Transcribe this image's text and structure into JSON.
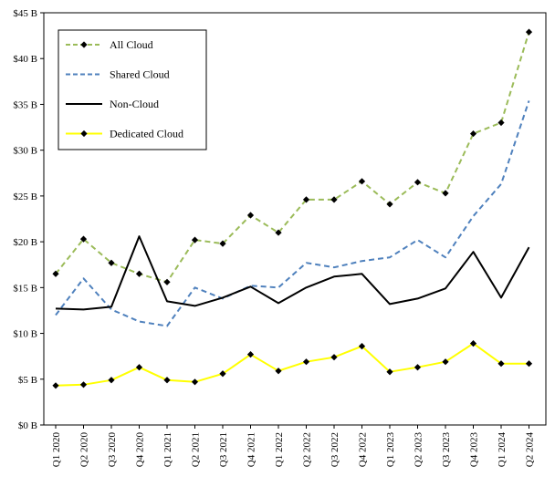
{
  "chart_data": {
    "type": "line",
    "categories": [
      "Q1 2020",
      "Q2 2020",
      "Q3 2020",
      "Q4 2020",
      "Q1 2021",
      "Q2 2021",
      "Q3 2021",
      "Q4 2021",
      "Q1 2022",
      "Q2 2022",
      "Q3 2022",
      "Q4 2022",
      "Q1 2023",
      "Q2 2023",
      "Q3 2023",
      "Q4 2023",
      "Q1 2024",
      "Q2 2024"
    ],
    "yticks": [
      "$0 B",
      "$5 B",
      "$10 B",
      "$15 B",
      "$20 B",
      "$25 B",
      "$30 B",
      "$35 B",
      "$40 B",
      "$45 B"
    ],
    "ylim": [
      0,
      45
    ],
    "grid": false,
    "legend_position": "top-left",
    "series": [
      {
        "name": "All Cloud",
        "color": "#9BBB59",
        "style": "dashed",
        "markers": "diamond",
        "values": [
          16.5,
          20.3,
          17.7,
          16.5,
          15.6,
          20.2,
          19.8,
          22.9,
          21.0,
          24.6,
          24.6,
          26.6,
          24.1,
          26.5,
          25.3,
          31.8,
          33.0,
          42.9
        ]
      },
      {
        "name": "Shared Cloud",
        "color": "#4F81BD",
        "style": "dashed",
        "markers": "none",
        "values": [
          12.0,
          16.0,
          12.6,
          11.3,
          10.8,
          15.0,
          13.8,
          15.2,
          15.0,
          17.7,
          17.2,
          17.9,
          18.3,
          20.2,
          18.3,
          22.8,
          26.3,
          35.4
        ]
      },
      {
        "name": "Non-Cloud",
        "color": "#000000",
        "style": "solid",
        "markers": "none",
        "values": [
          12.7,
          12.6,
          12.9,
          20.6,
          13.5,
          13.0,
          13.9,
          15.1,
          13.3,
          15.0,
          16.2,
          16.5,
          13.2,
          13.8,
          14.9,
          18.9,
          13.9,
          19.4
        ]
      },
      {
        "name": "Dedicated Cloud",
        "color": "#FFFF00",
        "style": "solid",
        "markers": "diamond",
        "values": [
          4.3,
          4.4,
          4.9,
          6.3,
          4.9,
          4.7,
          5.6,
          7.7,
          5.9,
          6.9,
          7.4,
          8.6,
          5.8,
          6.3,
          6.9,
          8.9,
          6.7,
          6.7
        ]
      }
    ]
  }
}
